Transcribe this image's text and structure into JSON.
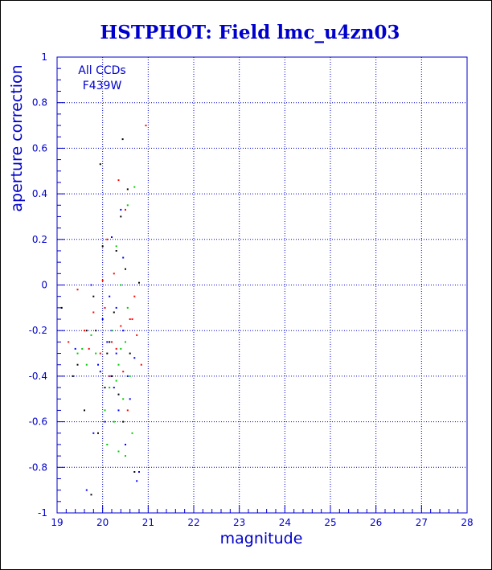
{
  "chart_data": {
    "type": "scatter",
    "title": "HSTPHOT: Field lmc_u4zn03",
    "xlabel": "magnitude",
    "ylabel": "aperture correction",
    "xlim": [
      19,
      28
    ],
    "ylim": [
      -1,
      1
    ],
    "x_ticks": [
      19,
      20,
      21,
      22,
      23,
      24,
      25,
      26,
      27,
      28
    ],
    "y_ticks": [
      -1,
      -0.8,
      -0.6,
      -0.4,
      -0.2,
      0,
      0.2,
      0.4,
      0.6,
      0.8,
      1
    ],
    "x_tick_labels": [
      "19",
      "20",
      "21",
      "22",
      "23",
      "24",
      "25",
      "26",
      "27",
      "28"
    ],
    "y_tick_labels": [
      "-1",
      "-0.8",
      "-0.6",
      "-0.4",
      "-0.2",
      "0",
      "0.2",
      "0.4",
      "0.6",
      "0.8",
      "1"
    ],
    "grid": true,
    "annotation": [
      "All CCDs",
      "F439W"
    ],
    "colors": {
      "axis": "#0000cc",
      "grid": "#0000cc",
      "series": [
        "#000000",
        "#ff0000",
        "#00cc00",
        "#0000ff"
      ]
    },
    "series": [
      {
        "color": "#000000",
        "x": [
          20.44,
          19.95,
          20.55,
          19.1,
          19.8,
          20.4,
          20.3,
          20.15,
          19.45,
          20.6,
          20.5,
          20.05,
          19.85,
          20.35,
          20.25,
          19.6,
          20.7,
          19.75,
          20.2,
          19.9,
          20.45,
          20.1,
          19.65,
          19.35,
          20.8,
          20.0
        ],
        "y": [
          0.64,
          0.53,
          0.42,
          -0.1,
          -0.05,
          0.3,
          0.15,
          -0.25,
          -0.35,
          -0.3,
          0.07,
          -0.45,
          -0.2,
          -0.48,
          -0.12,
          -0.55,
          -0.82,
          -0.92,
          -0.4,
          -0.65,
          -0.6,
          -0.3,
          -0.2,
          -0.4,
          0.01,
          0.17
        ]
      },
      {
        "color": "#ff0000",
        "x": [
          20.95,
          20.35,
          20.5,
          20.1,
          19.45,
          20.25,
          20.7,
          20.05,
          19.8,
          20.6,
          20.4,
          19.6,
          20.2,
          20.3,
          19.95,
          20.85,
          20.45,
          20.15,
          19.7,
          20.55,
          19.25,
          20.65,
          20.0,
          20.75
        ],
        "y": [
          0.7,
          0.46,
          0.33,
          0.2,
          -0.02,
          0.05,
          -0.05,
          -0.1,
          -0.12,
          -0.15,
          -0.18,
          -0.2,
          -0.25,
          -0.28,
          -0.3,
          -0.35,
          -0.38,
          -0.4,
          -0.28,
          -0.55,
          -0.25,
          -0.15,
          0.02,
          -0.22
        ]
      },
      {
        "color": "#00cc00",
        "x": [
          20.7,
          20.55,
          20.3,
          20.4,
          19.45,
          20.2,
          20.5,
          19.85,
          20.35,
          20.6,
          20.15,
          20.45,
          20.05,
          19.55,
          20.25,
          20.65,
          20.1,
          20.35,
          20.5,
          19.65,
          20.4,
          20.55,
          20.3,
          19.75
        ],
        "y": [
          0.43,
          0.35,
          0.17,
          0.0,
          -0.3,
          -0.2,
          -0.25,
          -0.3,
          -0.35,
          -0.4,
          -0.45,
          -0.5,
          -0.55,
          -0.28,
          -0.6,
          -0.65,
          -0.7,
          -0.73,
          -0.75,
          -0.35,
          -0.28,
          -0.1,
          -0.42,
          -0.22
        ]
      },
      {
        "color": "#0000ff",
        "x": [
          20.8,
          20.75,
          20.4,
          20.2,
          19.75,
          19.65,
          20.0,
          20.45,
          20.1,
          20.3,
          19.9,
          20.55,
          20.25,
          20.6,
          20.35,
          20.05,
          19.8,
          20.5,
          20.15,
          19.4,
          20.7,
          19.95,
          20.45,
          20.3
        ],
        "y": [
          -0.82,
          -0.86,
          0.33,
          0.21,
          0.0,
          -0.9,
          -0.15,
          -0.2,
          -0.25,
          -0.3,
          -0.35,
          -0.4,
          -0.45,
          -0.5,
          -0.55,
          -0.6,
          -0.65,
          -0.7,
          -0.05,
          -0.28,
          -0.32,
          -0.38,
          0.12,
          -0.1
        ]
      }
    ]
  }
}
